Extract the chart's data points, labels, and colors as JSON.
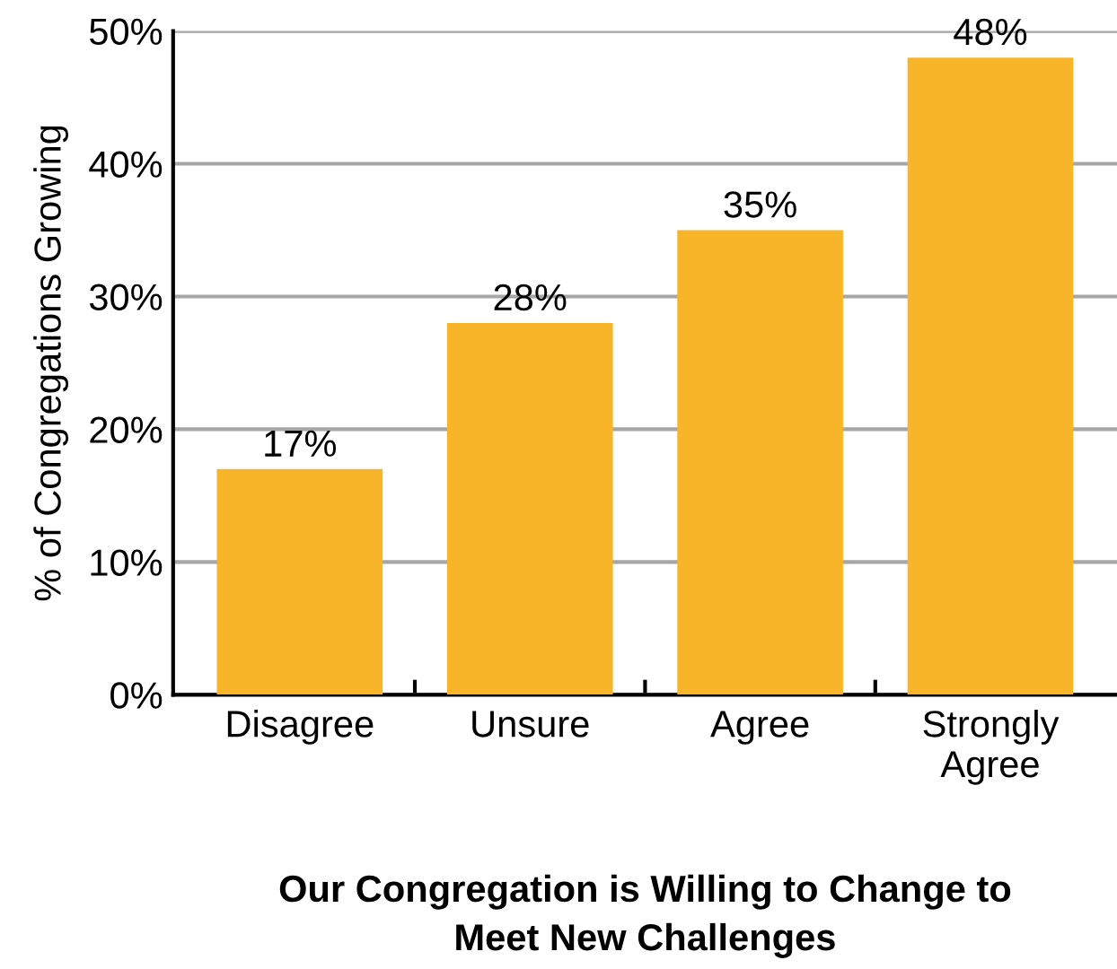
{
  "chart_data": {
    "type": "bar",
    "xlabel": "Our Congregation is Willing to Change to\nMeet New Challenges",
    "ylabel": "% of Congregations Growing",
    "categories": [
      "Disagree",
      "Unsure",
      "Agree",
      "Strongly\nAgree"
    ],
    "values": [
      17,
      28,
      35,
      48
    ],
    "color": "#f9b52a",
    "value_labels": [
      "17%",
      "28%",
      "35%",
      "48%"
    ],
    "ylim": [
      0,
      50
    ],
    "yticks": [
      {
        "value": 0,
        "label": "0%"
      },
      {
        "value": 10,
        "label": "10%"
      },
      {
        "value": 20,
        "label": "20%"
      },
      {
        "value": 30,
        "label": "30%"
      },
      {
        "value": 40,
        "label": "40%"
      },
      {
        "value": 50,
        "label": "50%"
      }
    ],
    "grid": "y",
    "legend": false
  }
}
